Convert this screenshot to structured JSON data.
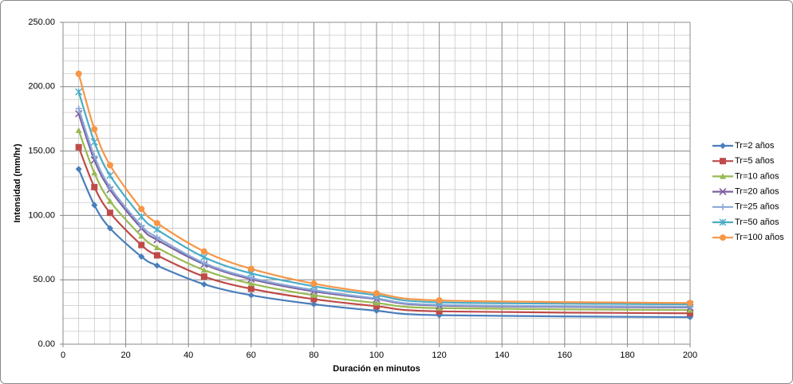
{
  "chart_data": {
    "type": "line",
    "x_label": "Duración en minutos",
    "y_label": "Intensidad (mm/hr)",
    "x": [
      5,
      10,
      15,
      25,
      30,
      45,
      60,
      80,
      100,
      120,
      200
    ],
    "series": [
      {
        "name": "Tr=2 años",
        "color": "#4a7ebb",
        "marker": "diamond",
        "values": [
          136,
          108,
          90,
          68,
          61,
          46.5,
          38,
          31,
          26,
          22.5,
          21
        ]
      },
      {
        "name": "Tr=5 años",
        "color": "#be4b48",
        "marker": "square",
        "values": [
          153,
          122,
          102,
          77,
          69,
          52.5,
          43,
          35,
          29.5,
          25.5,
          24
        ]
      },
      {
        "name": "Tr=10 años",
        "color": "#98b954",
        "marker": "triangle",
        "values": [
          166,
          133,
          111,
          84,
          75,
          57.5,
          47,
          38,
          32,
          28,
          26.5
        ]
      },
      {
        "name": "Tr=20 años",
        "color": "#7d60a0",
        "marker": "x",
        "values": [
          179,
          143,
          120,
          90,
          81,
          62,
          50.5,
          41,
          35,
          30,
          28.5
        ]
      },
      {
        "name": "Tr=25 años",
        "color": "#8aa8d8",
        "marker": "plus",
        "values": [
          183,
          146,
          122,
          92,
          83,
          63,
          51.5,
          42,
          35.5,
          30.5,
          29
        ]
      },
      {
        "name": "Tr=50 años",
        "color": "#4bacc6",
        "marker": "star",
        "values": [
          196,
          157,
          131,
          99,
          89,
          67.5,
          55,
          45,
          38,
          32.5,
          31
        ]
      },
      {
        "name": "Tr=100 años",
        "color": "#f79646",
        "marker": "circle",
        "values": [
          210,
          167,
          139,
          105,
          94,
          72,
          58.5,
          47,
          39.5,
          34,
          32
        ]
      }
    ],
    "xlim": [
      0,
      200
    ],
    "xticks": [
      0,
      20,
      40,
      60,
      80,
      100,
      120,
      140,
      160,
      180,
      200
    ],
    "ylim": [
      0,
      250
    ],
    "yticks": [
      {
        "value": 0,
        "label": "0.00"
      },
      {
        "value": 50,
        "label": "50.00"
      },
      {
        "value": 100,
        "label": "100.00"
      },
      {
        "value": 150,
        "label": "150.00"
      },
      {
        "value": 200,
        "label": "200.00"
      },
      {
        "value": 250,
        "label": "250.00"
      }
    ],
    "grid": true,
    "minor_grid": {
      "x": 5,
      "y": 10
    },
    "legend": "right"
  }
}
